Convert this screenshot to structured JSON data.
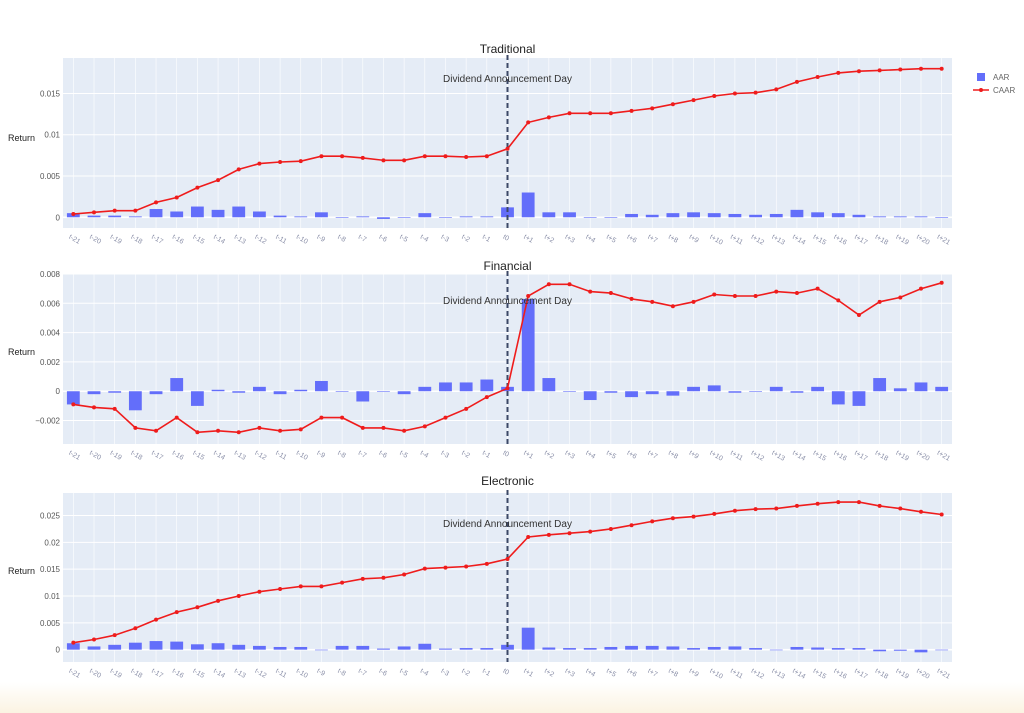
{
  "colors": {
    "plot_bg": "#e5ecf6",
    "grid": "#ffffff",
    "aar": "#636efa",
    "caar": "#ef1c1c",
    "vline": "#3c4866"
  },
  "legend": {
    "aar": "AAR",
    "caar": "CAAR"
  },
  "event_label": "Dividend Announcement Day",
  "x_labels": [
    "t-21",
    "t-20",
    "t-19",
    "t-18",
    "t-17",
    "t-16",
    "t-15",
    "t-14",
    "t-13",
    "t-12",
    "t-11",
    "t-10",
    "t-9",
    "t-8",
    "t-7",
    "t-6",
    "t-5",
    "t-4",
    "t-3",
    "t-2",
    "t-1",
    "t0",
    "t+1",
    "t+2",
    "t+3",
    "t+4",
    "t+5",
    "t+6",
    "t+7",
    "t+8",
    "t+9",
    "t+10",
    "t+11",
    "t+12",
    "t+13",
    "t+14",
    "t+15",
    "t+16",
    "t+17",
    "t+18",
    "t+19",
    "t+20",
    "t+21"
  ],
  "chart_data": [
    {
      "type": "bar+line",
      "title": "Traditional",
      "ylabel": "Return",
      "ylim": [
        -0.0013,
        0.0193
      ],
      "yticks": [
        0,
        0.005,
        0.01,
        0.015
      ],
      "ytick_labels": [
        "0",
        "0.005",
        "0.01",
        "0.015"
      ],
      "series": [
        {
          "name": "AAR",
          "kind": "bar",
          "values": [
            0.0005,
            0.0002,
            0.0002,
            0.0001,
            0.001,
            0.0007,
            0.0013,
            0.0009,
            0.0013,
            0.0007,
            0.0002,
            0.0001,
            0.0006,
            0,
            0.0001,
            -0.0002,
            0,
            0.0005,
            0,
            0.0001,
            0.0001,
            0.0012,
            0.003,
            0.0006,
            0.0006,
            0,
            0,
            0.0004,
            0.0003,
            0.0005,
            0.0006,
            0.0005,
            0.0004,
            0.0003,
            0.0004,
            0.0009,
            0.0006,
            0.0005,
            0.0003,
            0.0001,
            0.0001,
            0.0001,
            0
          ]
        },
        {
          "name": "CAAR",
          "kind": "line",
          "values": [
            0.0004,
            0.0006,
            0.0008,
            0.0008,
            0.0018,
            0.0024,
            0.0036,
            0.0045,
            0.0058,
            0.0065,
            0.0067,
            0.0068,
            0.0074,
            0.0074,
            0.0072,
            0.0069,
            0.0069,
            0.0074,
            0.0074,
            0.0073,
            0.0074,
            0.0083,
            0.0115,
            0.0121,
            0.0126,
            0.0126,
            0.0126,
            0.0129,
            0.0132,
            0.0137,
            0.0142,
            0.0147,
            0.015,
            0.0151,
            0.0155,
            0.0164,
            0.017,
            0.0175,
            0.0177,
            0.0178,
            0.0179,
            0.018,
            0.018
          ]
        }
      ]
    },
    {
      "type": "bar+line",
      "title": "Financial",
      "ylabel": "Return",
      "ylim": [
        -0.0036,
        0.008
      ],
      "yticks": [
        -0.002,
        0,
        0.002,
        0.004,
        0.006,
        0.008
      ],
      "ytick_labels": [
        "−0.002",
        "0",
        "0.002",
        "0.004",
        "0.006",
        "0.008"
      ],
      "series": [
        {
          "name": "AAR",
          "kind": "bar",
          "values": [
            -0.0009,
            -0.0002,
            -0.0001,
            -0.0013,
            -0.0002,
            0.0009,
            -0.001,
            0.0001,
            -0.0001,
            0.0003,
            -0.0002,
            0.0001,
            0.0007,
            0,
            -0.0007,
            0,
            -0.0002,
            0.0003,
            0.0006,
            0.0006,
            0.0008,
            0.0003,
            0.0063,
            0.0009,
            0,
            -0.0006,
            -0.0001,
            -0.0004,
            -0.0002,
            -0.0003,
            0.0003,
            0.0004,
            -0.0001,
            0,
            0.0003,
            -0.0001,
            0.0003,
            -0.0009,
            -0.001,
            0.0009,
            0.0002,
            0.0006,
            0.0003
          ]
        },
        {
          "name": "CAAR",
          "kind": "line",
          "values": [
            -0.0009,
            -0.0011,
            -0.0012,
            -0.0025,
            -0.0027,
            -0.0018,
            -0.0028,
            -0.0027,
            -0.0028,
            -0.0025,
            -0.0027,
            -0.0026,
            -0.0018,
            -0.0018,
            -0.0025,
            -0.0025,
            -0.0027,
            -0.0024,
            -0.0018,
            -0.0012,
            -0.0004,
            0.0002,
            0.0065,
            0.0073,
            0.0073,
            0.0068,
            0.0067,
            0.0063,
            0.0061,
            0.0058,
            0.0061,
            0.0066,
            0.0065,
            0.0065,
            0.0068,
            0.0067,
            0.007,
            0.0062,
            0.0052,
            0.0061,
            0.0064,
            0.007,
            0.0074
          ]
        }
      ]
    },
    {
      "type": "bar+line",
      "title": "Electronic",
      "ylabel": "Return",
      "ylim": [
        -0.0023,
        0.0292
      ],
      "yticks": [
        0,
        0.005,
        0.01,
        0.015,
        0.02,
        0.025
      ],
      "ytick_labels": [
        "0",
        "0.005",
        "0.01",
        "0.015",
        "0.02",
        "0.025"
      ],
      "series": [
        {
          "name": "AAR",
          "kind": "bar",
          "values": [
            0.0012,
            0.0006,
            0.0009,
            0.0013,
            0.0016,
            0.0015,
            0.001,
            0.0012,
            0.0009,
            0.0007,
            0.0005,
            0.0005,
            0,
            0.0007,
            0.0007,
            0.0002,
            0.0006,
            0.0011,
            0.0002,
            0.0003,
            0.0003,
            0.0009,
            0.0041,
            0.0004,
            0.0003,
            0.0003,
            0.0005,
            0.0007,
            0.0007,
            0.0006,
            0.0003,
            0.0005,
            0.0006,
            0.0003,
            0,
            0.0005,
            0.0004,
            0.0003,
            0.0003,
            -0.0003,
            -0.0002,
            -0.0005,
            -0.0001
          ]
        },
        {
          "name": "CAAR",
          "kind": "line",
          "values": [
            0.0013,
            0.0019,
            0.0027,
            0.004,
            0.0056,
            0.007,
            0.0079,
            0.0091,
            0.01,
            0.0108,
            0.0113,
            0.0118,
            0.0118,
            0.0125,
            0.0132,
            0.0134,
            0.014,
            0.0151,
            0.0153,
            0.0155,
            0.016,
            0.0169,
            0.021,
            0.0214,
            0.0217,
            0.022,
            0.0225,
            0.0232,
            0.0239,
            0.0245,
            0.0248,
            0.0253,
            0.0259,
            0.0262,
            0.0263,
            0.0268,
            0.0272,
            0.0275,
            0.0275,
            0.0268,
            0.0263,
            0.0257,
            0.0252
          ]
        }
      ]
    }
  ]
}
